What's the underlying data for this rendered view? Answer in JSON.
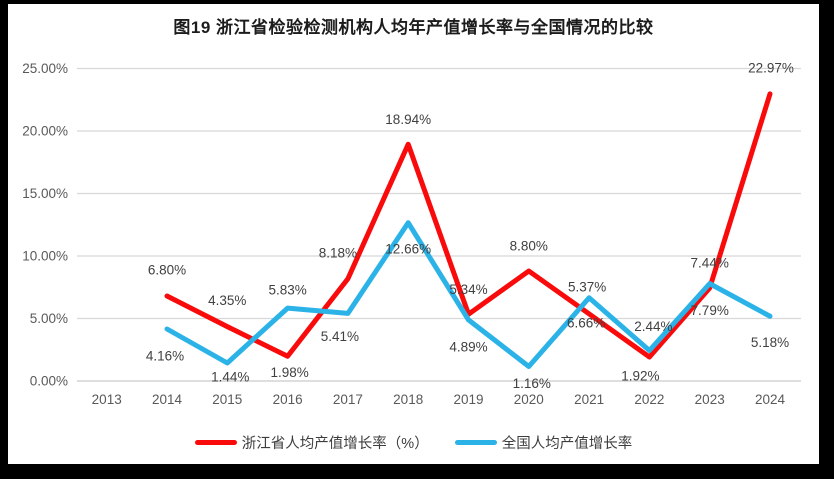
{
  "colors": {
    "zhejiang_red": "#F90B0B",
    "national_blue": "#2BB3E8",
    "gridline": "#D8D8D8",
    "axis_line": "#C9C9C9",
    "axis_text": "#595959",
    "data_label": "#404040",
    "frame": "#000000",
    "background": "#FFFFFF"
  },
  "chart_data": {
    "type": "line",
    "title": "图19  浙江省检验检测机构人均年产值增长率与全国情况的比较",
    "xlabel": "",
    "ylabel": "",
    "ylim": [
      0,
      25
    ],
    "grid": true,
    "legend_position": "bottom",
    "categories": [
      "2013",
      "2014",
      "2015",
      "2016",
      "2017",
      "2018",
      "2019",
      "2020",
      "2021",
      "2022",
      "2023",
      "2024"
    ],
    "y_tick_labels": [
      "0.00%",
      "5.00%",
      "10.00%",
      "15.00%",
      "20.00%",
      "25.00%"
    ],
    "y_tick_values": [
      0,
      5,
      10,
      15,
      20,
      25
    ],
    "series": [
      {
        "name": "浙江省人均产值增长率（%）",
        "color": "#F90B0B",
        "values": [
          null,
          6.8,
          4.35,
          1.98,
          8.18,
          18.94,
          5.34,
          8.8,
          5.37,
          1.92,
          7.44,
          22.97
        ],
        "data_labels": [
          "",
          "6.80%",
          "4.35%",
          "1.98%",
          "8.18%",
          "18.94%",
          "5.34%",
          "8.80%",
          "5.37%",
          "1.92%",
          "7.44%",
          "22.97%"
        ],
        "label_dx": [
          0,
          0,
          0,
          2,
          -10,
          0,
          0,
          0,
          -2,
          -9,
          0,
          1
        ],
        "label_dy": [
          0,
          -26,
          -26,
          16,
          -26,
          -25,
          -25,
          -25,
          -27,
          19,
          -25,
          -26
        ]
      },
      {
        "name": "全国人均产值增长率",
        "color": "#2BB3E8",
        "values": [
          null,
          4.16,
          1.44,
          5.83,
          5.41,
          12.66,
          4.89,
          1.16,
          6.66,
          2.44,
          7.79,
          5.18
        ],
        "data_labels": [
          "",
          "4.16%",
          "1.44%",
          "5.83%",
          "5.41%",
          "12.66%",
          "4.89%",
          "1.16%",
          "6.66%",
          "2.44%",
          "7.79%",
          "5.18%"
        ],
        "label_dx": [
          0,
          -2,
          3,
          0,
          -8,
          0,
          0,
          3,
          -3,
          4,
          0,
          0
        ],
        "label_dy": [
          0,
          27,
          14,
          -18,
          23,
          26,
          27,
          17,
          25,
          -24,
          27,
          26
        ]
      }
    ]
  },
  "legend": {
    "items": [
      {
        "label": "浙江省人均产值增长率（%）",
        "color": "#F90B0B"
      },
      {
        "label": "全国人均产值增长率",
        "color": "#2BB3E8"
      }
    ]
  }
}
